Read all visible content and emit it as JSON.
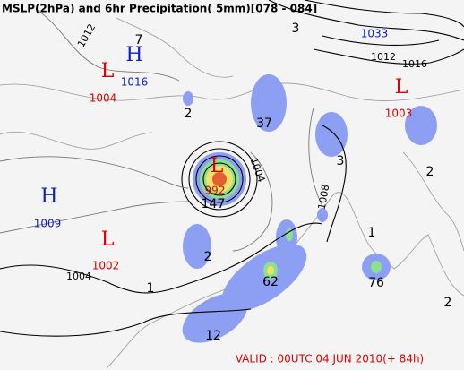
{
  "header": {
    "title": "MSLP(2hPa) and  6hr Precipitation( 5mm)[078 - 084]",
    "valid": "VALID : 00UTC 04 JUN 2010(+ 84h)"
  },
  "centers": [
    {
      "letter": "H",
      "value": 1016
    },
    {
      "letter": "L",
      "value": 1004
    },
    {
      "letter": "L",
      "value": 1003
    },
    {
      "letter": "H",
      "value": 1009
    },
    {
      "letter": "L",
      "value": 1002
    },
    {
      "letter": "L",
      "value": 992
    }
  ],
  "high_value": 1033,
  "isobar_labels": [
    1012,
    1016,
    1012,
    1004,
    1008,
    1004
  ],
  "precip_labels": [
    7,
    3,
    2,
    37,
    3,
    2,
    147,
    2,
    1,
    1,
    62,
    76,
    12,
    2
  ]
}
